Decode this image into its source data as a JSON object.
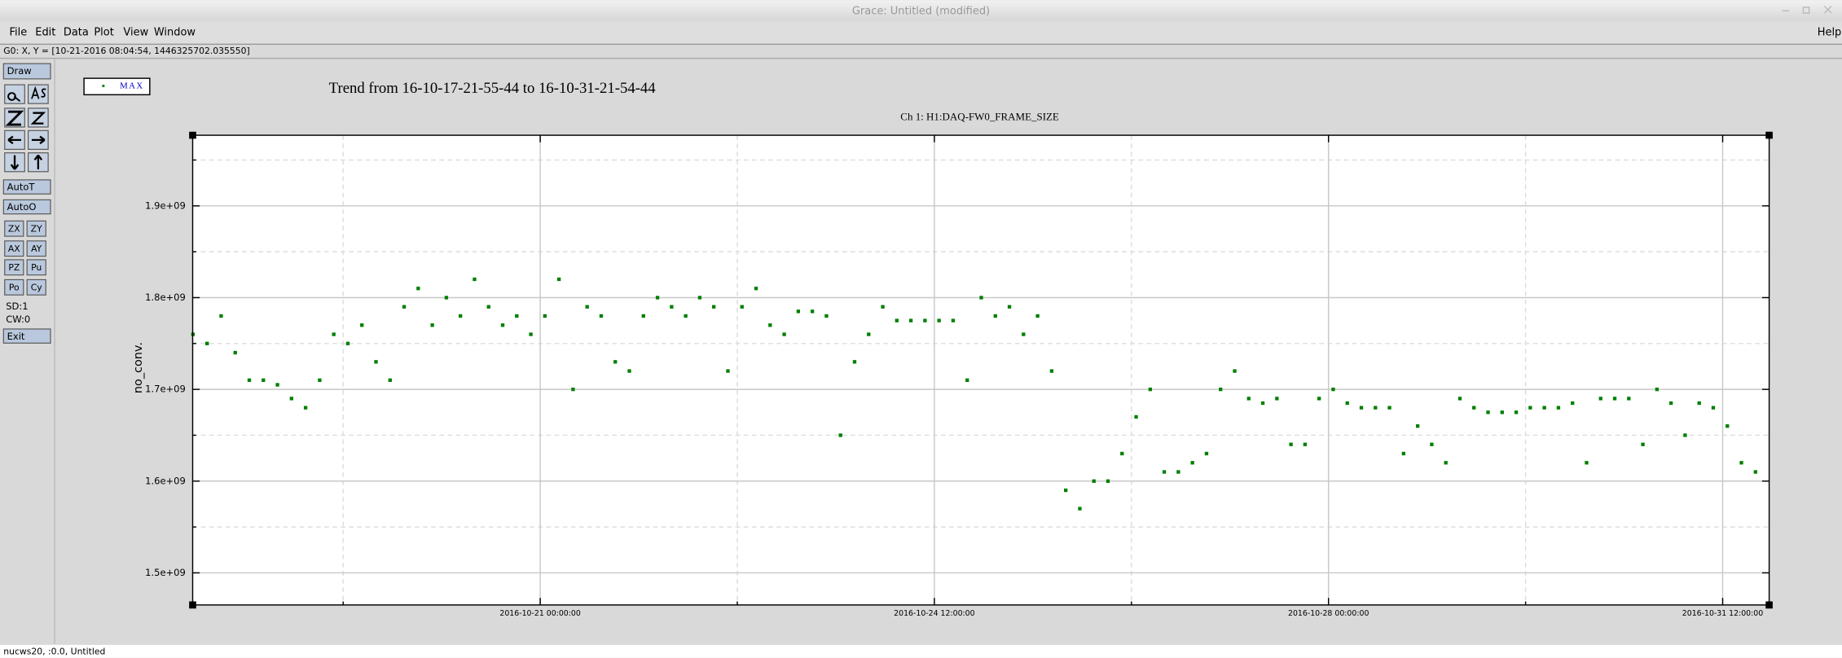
{
  "window": {
    "title": "Grace: Untitled (modified)",
    "menus": [
      "File",
      "Edit",
      "Data",
      "Plot",
      "View",
      "Window"
    ],
    "help": "Help",
    "status": "G0: X, Y = [10-21-2016 08:04:54, 1446325702.035550]",
    "footer": "nucws20, :0.0, Untitled"
  },
  "toolbar": {
    "draw": "Draw",
    "autot": "AutoT",
    "autoo": "AutoO",
    "pairs": [
      [
        "ZX",
        "ZY"
      ],
      [
        "AX",
        "AY"
      ],
      [
        "PZ",
        "Pu"
      ],
      [
        "Po",
        "Cy"
      ]
    ],
    "sd": "SD:1",
    "cw": "CW:0",
    "exit": "Exit"
  },
  "chart_data": {
    "type": "scatter",
    "title": "Trend from 16-10-17-21-55-44 to 16-10-31-21-54-44",
    "subtitle": "Ch 1: H1:DAQ-FW0_FRAME_SIZE",
    "ylabel": "no_conv.",
    "x": [
      "2016-10-17 22:00:00",
      "2016-10-18 01:00:00",
      "2016-10-18 04:00:00",
      "2016-10-18 07:00:00",
      "2016-10-18 10:00:00",
      "2016-10-18 13:00:00",
      "2016-10-18 16:00:00",
      "2016-10-18 19:00:00",
      "2016-10-18 22:00:00",
      "2016-10-19 01:00:00",
      "2016-10-19 04:00:00",
      "2016-10-19 07:00:00",
      "2016-10-19 10:00:00",
      "2016-10-19 13:00:00",
      "2016-10-19 16:00:00",
      "2016-10-19 19:00:00",
      "2016-10-19 22:00:00",
      "2016-10-20 01:00:00",
      "2016-10-20 04:00:00",
      "2016-10-20 07:00:00",
      "2016-10-20 10:00:00",
      "2016-10-20 13:00:00",
      "2016-10-20 16:00:00",
      "2016-10-20 19:00:00",
      "2016-10-20 22:00:00",
      "2016-10-21 01:00:00",
      "2016-10-21 04:00:00",
      "2016-10-21 07:00:00",
      "2016-10-21 10:00:00",
      "2016-10-21 13:00:00",
      "2016-10-21 16:00:00",
      "2016-10-21 19:00:00",
      "2016-10-21 22:00:00",
      "2016-10-22 01:00:00",
      "2016-10-22 04:00:00",
      "2016-10-22 07:00:00",
      "2016-10-22 10:00:00",
      "2016-10-22 13:00:00",
      "2016-10-22 16:00:00",
      "2016-10-22 19:00:00",
      "2016-10-22 22:00:00",
      "2016-10-23 01:00:00",
      "2016-10-23 04:00:00",
      "2016-10-23 07:00:00",
      "2016-10-23 10:00:00",
      "2016-10-23 13:00:00",
      "2016-10-23 16:00:00",
      "2016-10-23 19:00:00",
      "2016-10-23 22:00:00",
      "2016-10-24 01:00:00",
      "2016-10-24 04:00:00",
      "2016-10-24 07:00:00",
      "2016-10-24 10:00:00",
      "2016-10-24 13:00:00",
      "2016-10-24 16:00:00",
      "2016-10-24 19:00:00",
      "2016-10-24 22:00:00",
      "2016-10-25 01:00:00",
      "2016-10-25 04:00:00",
      "2016-10-25 07:00:00",
      "2016-10-25 10:00:00",
      "2016-10-25 13:00:00",
      "2016-10-25 16:00:00",
      "2016-10-25 19:00:00",
      "2016-10-25 22:00:00",
      "2016-10-26 01:00:00",
      "2016-10-26 04:00:00",
      "2016-10-26 07:00:00",
      "2016-10-26 10:00:00",
      "2016-10-26 13:00:00",
      "2016-10-26 16:00:00",
      "2016-10-26 19:00:00",
      "2016-10-26 22:00:00",
      "2016-10-27 01:00:00",
      "2016-10-27 04:00:00",
      "2016-10-27 07:00:00",
      "2016-10-27 10:00:00",
      "2016-10-27 13:00:00",
      "2016-10-27 16:00:00",
      "2016-10-27 19:00:00",
      "2016-10-27 22:00:00",
      "2016-10-28 01:00:00",
      "2016-10-28 04:00:00",
      "2016-10-28 07:00:00",
      "2016-10-28 10:00:00",
      "2016-10-28 13:00:00",
      "2016-10-28 16:00:00",
      "2016-10-28 19:00:00",
      "2016-10-28 22:00:00",
      "2016-10-29 01:00:00",
      "2016-10-29 04:00:00",
      "2016-10-29 07:00:00",
      "2016-10-29 10:00:00",
      "2016-10-29 13:00:00",
      "2016-10-29 16:00:00",
      "2016-10-29 19:00:00",
      "2016-10-29 22:00:00",
      "2016-10-30 01:00:00",
      "2016-10-30 04:00:00",
      "2016-10-30 07:00:00",
      "2016-10-30 10:00:00",
      "2016-10-30 13:00:00",
      "2016-10-30 16:00:00",
      "2016-10-30 19:00:00",
      "2016-10-30 22:00:00",
      "2016-10-31 01:00:00",
      "2016-10-31 04:00:00",
      "2016-10-31 07:00:00",
      "2016-10-31 10:00:00",
      "2016-10-31 13:00:00",
      "2016-10-31 16:00:00",
      "2016-10-31 19:00:00"
    ],
    "series": [
      {
        "name": "MAX",
        "color": "#008000",
        "values": [
          1760000000.0,
          1750000000.0,
          1780000000.0,
          1740000000.0,
          1710000000.0,
          1710000000.0,
          1705000000.0,
          1690000000.0,
          1680000000.0,
          1710000000.0,
          1760000000.0,
          1750000000.0,
          1770000000.0,
          1730000000.0,
          1710000000.0,
          1790000000.0,
          1810000000.0,
          1770000000.0,
          1800000000.0,
          1780000000.0,
          1820000000.0,
          1790000000.0,
          1770000000.0,
          1780000000.0,
          1760000000.0,
          1780000000.0,
          1820000000.0,
          1700000000.0,
          1790000000.0,
          1780000000.0,
          1730000000.0,
          1720000000.0,
          1780000000.0,
          1800000000.0,
          1790000000.0,
          1780000000.0,
          1800000000.0,
          1790000000.0,
          1720000000.0,
          1790000000.0,
          1810000000.0,
          1770000000.0,
          1760000000.0,
          1785000000.0,
          1785000000.0,
          1780000000.0,
          1650000000.0,
          1730000000.0,
          1760000000.0,
          1790000000.0,
          1775000000.0,
          1775000000.0,
          1775000000.0,
          1775000000.0,
          1775000000.0,
          1710000000.0,
          1800000000.0,
          1780000000.0,
          1790000000.0,
          1760000000.0,
          1780000000.0,
          1720000000.0,
          1590000000.0,
          1570000000.0,
          1600000000.0,
          1600000000.0,
          1630000000.0,
          1670000000.0,
          1700000000.0,
          1610000000.0,
          1610000000.0,
          1620000000.0,
          1630000000.0,
          1700000000.0,
          1720000000.0,
          1690000000.0,
          1685000000.0,
          1690000000.0,
          1640000000.0,
          1640000000.0,
          1690000000.0,
          1700000000.0,
          1685000000.0,
          1680000000.0,
          1680000000.0,
          1680000000.0,
          1630000000.0,
          1660000000.0,
          1640000000.0,
          1620000000.0,
          1690000000.0,
          1680000000.0,
          1675000000.0,
          1675000000.0,
          1675000000.0,
          1680000000.0,
          1680000000.0,
          1680000000.0,
          1685000000.0,
          1620000000.0,
          1690000000.0,
          1690000000.0,
          1690000000.0,
          1640000000.0,
          1700000000.0,
          1685000000.0,
          1650000000.0,
          1685000000.0,
          1680000000.0,
          1660000000.0,
          1620000000.0,
          1610000000.0
        ]
      }
    ],
    "xlim": [
      "2016-10-17 21:55:44",
      "2016-10-31 21:54:44"
    ],
    "xticks": [
      "2016-10-21 00:00:00",
      "2016-10-24 12:00:00",
      "2016-10-28 00:00:00",
      "2016-10-31 12:00:00"
    ],
    "ylim": [
      1465000000.0,
      1977000000.0
    ],
    "yticks": [
      {
        "value": 1500000000.0,
        "label": "1.5e+09"
      },
      {
        "value": 1600000000.0,
        "label": "1.6e+09"
      },
      {
        "value": 1700000000.0,
        "label": "1.7e+09"
      },
      {
        "value": 1800000000.0,
        "label": "1.8e+09"
      },
      {
        "value": 1900000000.0,
        "label": "1.9e+09"
      }
    ],
    "grid": true
  }
}
